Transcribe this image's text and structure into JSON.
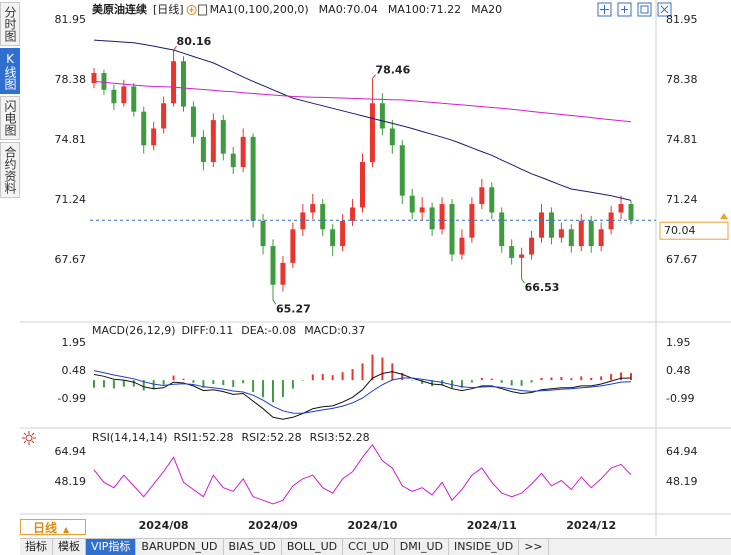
{
  "sidebar": {
    "tabs": [
      "分时图",
      "K线图",
      "闪电图",
      "合约资料"
    ],
    "active": 1
  },
  "toolbar": {
    "tabs": [
      "指标",
      "模板",
      "VIP指标",
      "BARUPDN_UD",
      "BIAS_UD",
      "BOLL_UD",
      "CCI_UD",
      "DMI_UD",
      "INSIDE_UD",
      ">>"
    ],
    "active": 2
  },
  "period_selector": "日线",
  "chart_data": [
    {
      "type": "candlestick",
      "title": "美原油连续",
      "period": "[日线]",
      "header_labels": [
        {
          "text": "MA1(0,100,200,0)",
          "color": "#222222"
        },
        {
          "text": "MA0:70.04",
          "color": "#222222"
        }
      ],
      "categories": [
        null,
        null,
        null,
        null,
        null,
        null,
        null,
        "2024/08",
        null,
        null,
        null,
        null,
        null,
        null,
        null,
        null,
        null,
        null,
        "2024/09",
        null,
        null,
        null,
        null,
        null,
        null,
        null,
        null,
        null,
        "2024/10",
        null,
        null,
        null,
        null,
        null,
        null,
        null,
        null,
        null,
        null,
        null,
        "2024/11",
        null,
        null,
        null,
        null,
        null,
        null,
        null,
        null,
        null,
        "2024/12",
        null,
        null,
        null,
        null
      ],
      "ohlc": [
        [
          78.2,
          79.1,
          77.9,
          78.8
        ],
        [
          78.8,
          79.0,
          77.5,
          77.8
        ],
        [
          77.8,
          78.1,
          76.6,
          77.0
        ],
        [
          77.0,
          78.4,
          76.8,
          78.0
        ],
        [
          78.0,
          78.2,
          76.2,
          76.5
        ],
        [
          76.5,
          76.8,
          74.0,
          74.5
        ],
        [
          74.5,
          75.9,
          74.2,
          75.5
        ],
        [
          75.5,
          77.4,
          75.2,
          77.0
        ],
        [
          77.0,
          80.16,
          76.8,
          79.5
        ],
        [
          79.5,
          79.8,
          76.5,
          76.8
        ],
        [
          76.8,
          77.1,
          74.6,
          75.0
        ],
        [
          75.0,
          75.4,
          73.0,
          73.5
        ],
        [
          73.5,
          76.4,
          73.2,
          76.0
        ],
        [
          76.0,
          76.3,
          73.6,
          74.0
        ],
        [
          74.0,
          74.4,
          72.8,
          73.2
        ],
        [
          73.2,
          75.5,
          72.9,
          75.0
        ],
        [
          75.0,
          75.2,
          69.6,
          70.0
        ],
        [
          70.0,
          70.4,
          68.0,
          68.5
        ],
        [
          68.5,
          68.9,
          65.27,
          66.2
        ],
        [
          66.2,
          67.9,
          65.8,
          67.5
        ],
        [
          67.5,
          69.9,
          67.2,
          69.5
        ],
        [
          69.5,
          71.0,
          69.1,
          70.5
        ],
        [
          70.5,
          71.6,
          70.1,
          71.0
        ],
        [
          71.0,
          71.3,
          69.1,
          69.5
        ],
        [
          69.5,
          69.8,
          67.9,
          68.5
        ],
        [
          68.5,
          70.4,
          68.2,
          70.0
        ],
        [
          70.0,
          71.3,
          69.7,
          70.8
        ],
        [
          70.8,
          74.0,
          70.5,
          73.5
        ],
        [
          73.5,
          78.46,
          73.2,
          77.0
        ],
        [
          77.0,
          77.6,
          75.1,
          75.5
        ],
        [
          75.5,
          76.0,
          74.0,
          74.5
        ],
        [
          74.5,
          74.8,
          71.0,
          71.5
        ],
        [
          71.5,
          71.9,
          70.1,
          70.5
        ],
        [
          70.5,
          71.4,
          70.0,
          70.8
        ],
        [
          70.8,
          71.1,
          69.1,
          69.5
        ],
        [
          69.5,
          71.4,
          69.2,
          71.0
        ],
        [
          71.0,
          71.3,
          67.6,
          68.0
        ],
        [
          68.0,
          69.5,
          67.7,
          69.0
        ],
        [
          69.0,
          71.4,
          68.7,
          71.0
        ],
        [
          71.0,
          72.5,
          70.7,
          72.0
        ],
        [
          72.0,
          72.3,
          70.1,
          70.5
        ],
        [
          70.5,
          70.8,
          68.1,
          68.5
        ],
        [
          68.5,
          68.9,
          67.4,
          67.8
        ],
        [
          67.8,
          68.4,
          66.53,
          68.0
        ],
        [
          68.0,
          69.4,
          67.7,
          69.0
        ],
        [
          69.0,
          71.0,
          68.7,
          70.5
        ],
        [
          70.5,
          70.8,
          68.6,
          69.0
        ],
        [
          69.0,
          69.9,
          68.7,
          69.5
        ],
        [
          69.5,
          69.8,
          68.1,
          68.5
        ],
        [
          68.5,
          70.4,
          68.2,
          70.0
        ],
        [
          70.0,
          70.3,
          68.1,
          68.5
        ],
        [
          68.5,
          69.9,
          68.2,
          69.5
        ],
        [
          69.5,
          70.9,
          69.2,
          70.5
        ],
        [
          70.5,
          71.5,
          70.1,
          71.0
        ],
        [
          71.0,
          71.2,
          69.8,
          70.04
        ]
      ],
      "up_color": "#e8362f",
      "down_color": "#3f9b3f",
      "series": [
        {
          "name": "MA100:71.22",
          "color": "#1a1a6e",
          "values": [
            80.76,
            80.72,
            80.68,
            80.64,
            80.6,
            80.5,
            80.4,
            80.28,
            80.17,
            79.98,
            79.78,
            79.59,
            79.4,
            79.12,
            78.85,
            78.57,
            78.3,
            78.05,
            77.8,
            77.55,
            77.3,
            77.15,
            77.0,
            76.85,
            76.7,
            76.55,
            76.4,
            76.25,
            76.1,
            75.95,
            75.8,
            75.65,
            75.5,
            75.32,
            75.15,
            74.98,
            74.8,
            74.58,
            74.35,
            74.12,
            73.9,
            73.62,
            73.35,
            73.07,
            72.8,
            72.58,
            72.35,
            72.12,
            71.9,
            71.8,
            71.7,
            71.6,
            71.5,
            71.36,
            71.22
          ]
        },
        {
          "name": "MA20",
          "color": "#d21ed2",
          "values": [
            78.3,
            78.25,
            78.19,
            78.14,
            78.08,
            78.03,
            78.0,
            77.98,
            77.96,
            77.91,
            77.86,
            77.82,
            77.77,
            77.72,
            77.68,
            77.63,
            77.58,
            77.54,
            77.49,
            77.45,
            77.4,
            77.38,
            77.36,
            77.35,
            77.33,
            77.31,
            77.29,
            77.27,
            77.25,
            77.23,
            77.21,
            77.2,
            77.15,
            77.1,
            77.05,
            77.0,
            76.95,
            76.9,
            76.85,
            76.8,
            76.75,
            76.7,
            76.64,
            76.58,
            76.51,
            76.45,
            76.39,
            76.33,
            76.27,
            76.21,
            76.15,
            76.08,
            76.02,
            75.96,
            75.9
          ]
        }
      ],
      "annotations": [
        80.16,
        78.46,
        65.27,
        66.53
      ],
      "ylim": [
        64.22,
        82.55
      ],
      "yticks": [
        81.95,
        78.38,
        74.81,
        71.24,
        67.67
      ],
      "grid": false
    },
    {
      "type": "macd",
      "title": "MACD(26,12,9)",
      "series": [
        {
          "name": "DIFF:0.11",
          "color": "#111111",
          "values": [
            0.3,
            0.2,
            0.05,
            0.0,
            -0.1,
            -0.35,
            -0.45,
            -0.4,
            -0.1,
            -0.15,
            -0.3,
            -0.55,
            -0.5,
            -0.6,
            -0.75,
            -0.7,
            -1.1,
            -1.5,
            -1.95,
            -2.05,
            -1.95,
            -1.75,
            -1.5,
            -1.4,
            -1.35,
            -1.15,
            -0.9,
            -0.5,
            0.1,
            0.35,
            0.45,
            0.3,
            0.1,
            -0.05,
            -0.2,
            -0.25,
            -0.45,
            -0.55,
            -0.45,
            -0.3,
            -0.3,
            -0.45,
            -0.6,
            -0.7,
            -0.65,
            -0.5,
            -0.45,
            -0.4,
            -0.4,
            -0.3,
            -0.3,
            -0.2,
            -0.05,
            0.1,
            0.11
          ]
        },
        {
          "name": "DEA:-0.08",
          "color": "#1e3cc8",
          "values": [
            0.5,
            0.39,
            0.27,
            0.17,
            0.07,
            -0.08,
            -0.21,
            -0.28,
            -0.22,
            -0.19,
            -0.23,
            -0.35,
            -0.4,
            -0.47,
            -0.57,
            -0.62,
            -0.79,
            -1.05,
            -1.37,
            -1.61,
            -1.73,
            -1.74,
            -1.65,
            -1.56,
            -1.48,
            -1.36,
            -1.19,
            -0.94,
            -0.57,
            -0.24,
            0.01,
            0.11,
            0.11,
            0.05,
            -0.04,
            -0.12,
            -0.24,
            -0.35,
            -0.39,
            -0.36,
            -0.34,
            -0.38,
            -0.46,
            -0.55,
            -0.59,
            -0.56,
            -0.52,
            -0.48,
            -0.45,
            -0.4,
            -0.36,
            -0.3,
            -0.21,
            -0.1,
            -0.08
          ]
        },
        {
          "name": "MACD:0.37",
          "color": "#d21ed2",
          "style": "bar",
          "values": [
            -0.4,
            -0.38,
            -0.44,
            -0.34,
            -0.34,
            -0.54,
            -0.48,
            -0.24,
            0.24,
            0.08,
            -0.14,
            -0.4,
            -0.2,
            -0.26,
            -0.36,
            -0.16,
            -0.62,
            -0.9,
            -1.16,
            -0.88,
            -0.44,
            -0.02,
            0.3,
            0.32,
            0.26,
            0.42,
            0.58,
            0.88,
            1.34,
            1.18,
            0.88,
            0.38,
            -0.02,
            -0.2,
            -0.32,
            -0.26,
            -0.42,
            -0.4,
            -0.12,
            0.12,
            0.08,
            -0.14,
            -0.28,
            -0.3,
            -0.12,
            0.12,
            0.14,
            0.16,
            0.1,
            0.2,
            0.12,
            0.2,
            0.32,
            0.4,
            0.37
          ]
        }
      ],
      "up_color": "#e8362f",
      "down_color": "#3f9b3f",
      "ylim": [
        -2.51,
        2.63
      ],
      "yticks": [
        1.95,
        0.48,
        -0.99
      ],
      "grid": false
    },
    {
      "type": "line",
      "title": "RSI(14,14,14)",
      "header_labels": [
        {
          "text": "RSI1:52.28",
          "color": "#222222"
        },
        {
          "text": "RSI2:52.28",
          "color": "#1e3cc8"
        }
      ],
      "series": [
        {
          "name": "RSI3:52.28",
          "color": "#d21ed2",
          "values": [
            55,
            48,
            45,
            52,
            46,
            40,
            47,
            54,
            62,
            48,
            44,
            40,
            52,
            45,
            43,
            50,
            40,
            38,
            36,
            38,
            46,
            50,
            52,
            45,
            42,
            50,
            54,
            62,
            69,
            60,
            56,
            46,
            43,
            45,
            41,
            48,
            38,
            44,
            52,
            56,
            48,
            42,
            40,
            42,
            47,
            53,
            46,
            49,
            44,
            51,
            45,
            50,
            56,
            58,
            52.28
          ]
        }
      ],
      "ylim": [
        32.56,
        76.1
      ],
      "yticks": [
        64.94,
        48.19
      ],
      "grid": false
    }
  ]
}
